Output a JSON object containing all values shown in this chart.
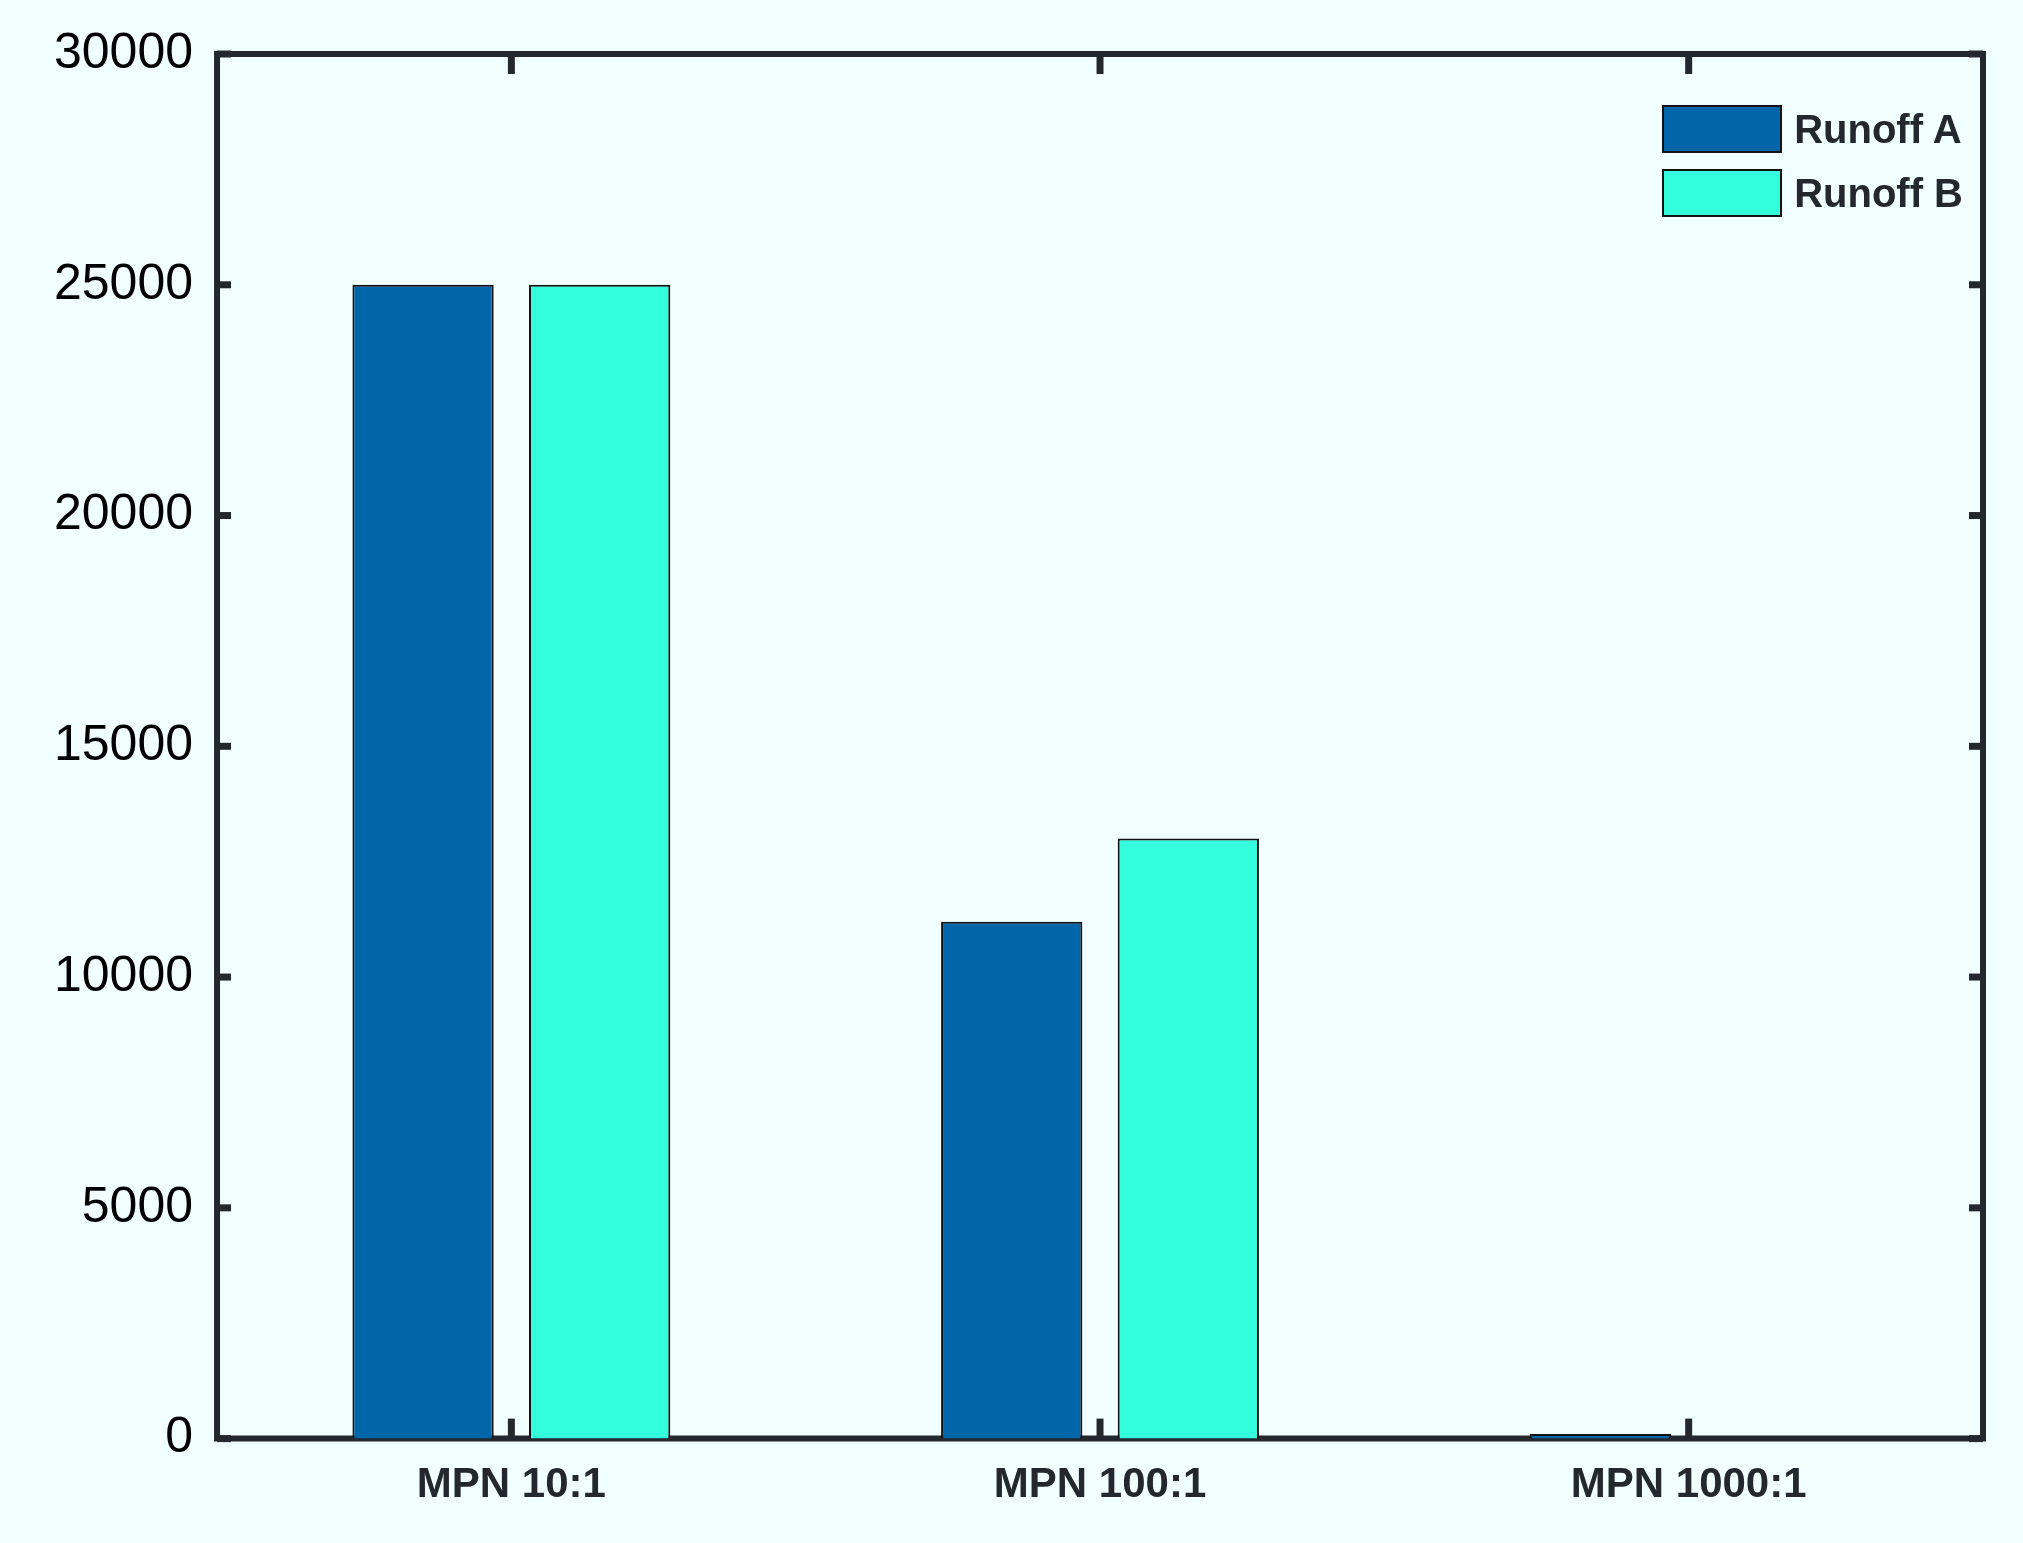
{
  "chart_data": {
    "type": "bar",
    "categories": [
      "MPN 10:1",
      "MPN 100:1",
      "MPN 1000:1"
    ],
    "series": [
      {
        "name": "Runoff A",
        "color": "#0066aa",
        "values": [
          25000,
          11200,
          100
        ]
      },
      {
        "name": "Runoff B",
        "color": "#33ffdd",
        "values": [
          25000,
          13000,
          null
        ]
      }
    ],
    "ylim": [
      0,
      30000
    ],
    "yticks": [
      0,
      5000,
      10000,
      15000,
      20000,
      25000,
      30000
    ],
    "grid": false,
    "legend": "top right"
  }
}
